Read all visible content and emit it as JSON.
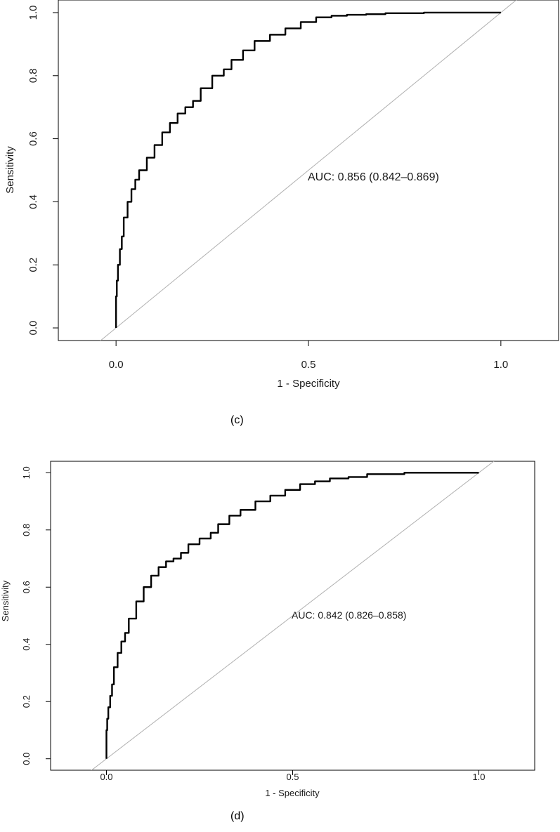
{
  "chart_data": [
    {
      "type": "line",
      "panel_label": "(c)",
      "xlabel": "1 - Specificity",
      "ylabel": "Sensitivity",
      "xlim": [
        -0.15,
        1.15
      ],
      "ylim": [
        -0.04,
        1.04
      ],
      "xticks": [
        "0.0",
        "0.5",
        "1.0"
      ],
      "yticks": [
        "0.0",
        "0.2",
        "0.4",
        "0.6",
        "0.8",
        "1.0"
      ],
      "annotation": "AUC: 0.856 (0.842–0.869)",
      "series": [
        {
          "x": [
            0,
            0.002,
            0.005,
            0.01,
            0.015,
            0.02,
            0.03,
            0.04,
            0.05,
            0.06,
            0.08,
            0.1,
            0.12,
            0.14,
            0.16,
            0.18,
            0.2,
            0.22,
            0.25,
            0.28,
            0.3,
            0.33,
            0.36,
            0.4,
            0.44,
            0.48,
            0.52,
            0.56,
            0.6,
            0.65,
            0.7,
            0.8,
            0.9,
            1.0
          ],
          "y": [
            0,
            0.1,
            0.15,
            0.2,
            0.25,
            0.29,
            0.35,
            0.4,
            0.44,
            0.47,
            0.5,
            0.54,
            0.58,
            0.62,
            0.65,
            0.68,
            0.7,
            0.72,
            0.76,
            0.8,
            0.82,
            0.85,
            0.88,
            0.91,
            0.93,
            0.95,
            0.97,
            0.985,
            0.99,
            0.993,
            0.995,
            0.998,
            1.0,
            1.0
          ]
        }
      ],
      "reference_line": {
        "x": [
          -0.05,
          1.05
        ],
        "y": [
          -0.05,
          1.05
        ]
      }
    },
    {
      "type": "line",
      "panel_label": "(d)",
      "xlabel": "1 - Specificity",
      "ylabel": "Sensitivity",
      "xlim": [
        -0.15,
        1.15
      ],
      "ylim": [
        -0.04,
        1.04
      ],
      "xticks": [
        "0.0",
        "0.5",
        "1.0"
      ],
      "yticks": [
        "0.0",
        "0.2",
        "0.4",
        "0.6",
        "0.8",
        "1.0"
      ],
      "annotation": "AUC: 0.842 (0.826–0.858)",
      "series": [
        {
          "x": [
            0,
            0.002,
            0.005,
            0.01,
            0.015,
            0.02,
            0.03,
            0.04,
            0.05,
            0.06,
            0.08,
            0.1,
            0.12,
            0.14,
            0.16,
            0.18,
            0.2,
            0.22,
            0.25,
            0.28,
            0.3,
            0.33,
            0.36,
            0.4,
            0.44,
            0.48,
            0.52,
            0.56,
            0.6,
            0.65,
            0.7,
            0.8,
            0.9,
            1.0
          ],
          "y": [
            0,
            0.1,
            0.14,
            0.18,
            0.22,
            0.26,
            0.32,
            0.37,
            0.41,
            0.44,
            0.49,
            0.55,
            0.6,
            0.64,
            0.67,
            0.69,
            0.7,
            0.72,
            0.75,
            0.77,
            0.79,
            0.82,
            0.85,
            0.87,
            0.9,
            0.92,
            0.94,
            0.96,
            0.97,
            0.98,
            0.985,
            0.995,
            1.0,
            1.0
          ]
        }
      ],
      "reference_line": {
        "x": [
          -0.05,
          1.05
        ],
        "y": [
          -0.05,
          1.05
        ]
      }
    }
  ]
}
